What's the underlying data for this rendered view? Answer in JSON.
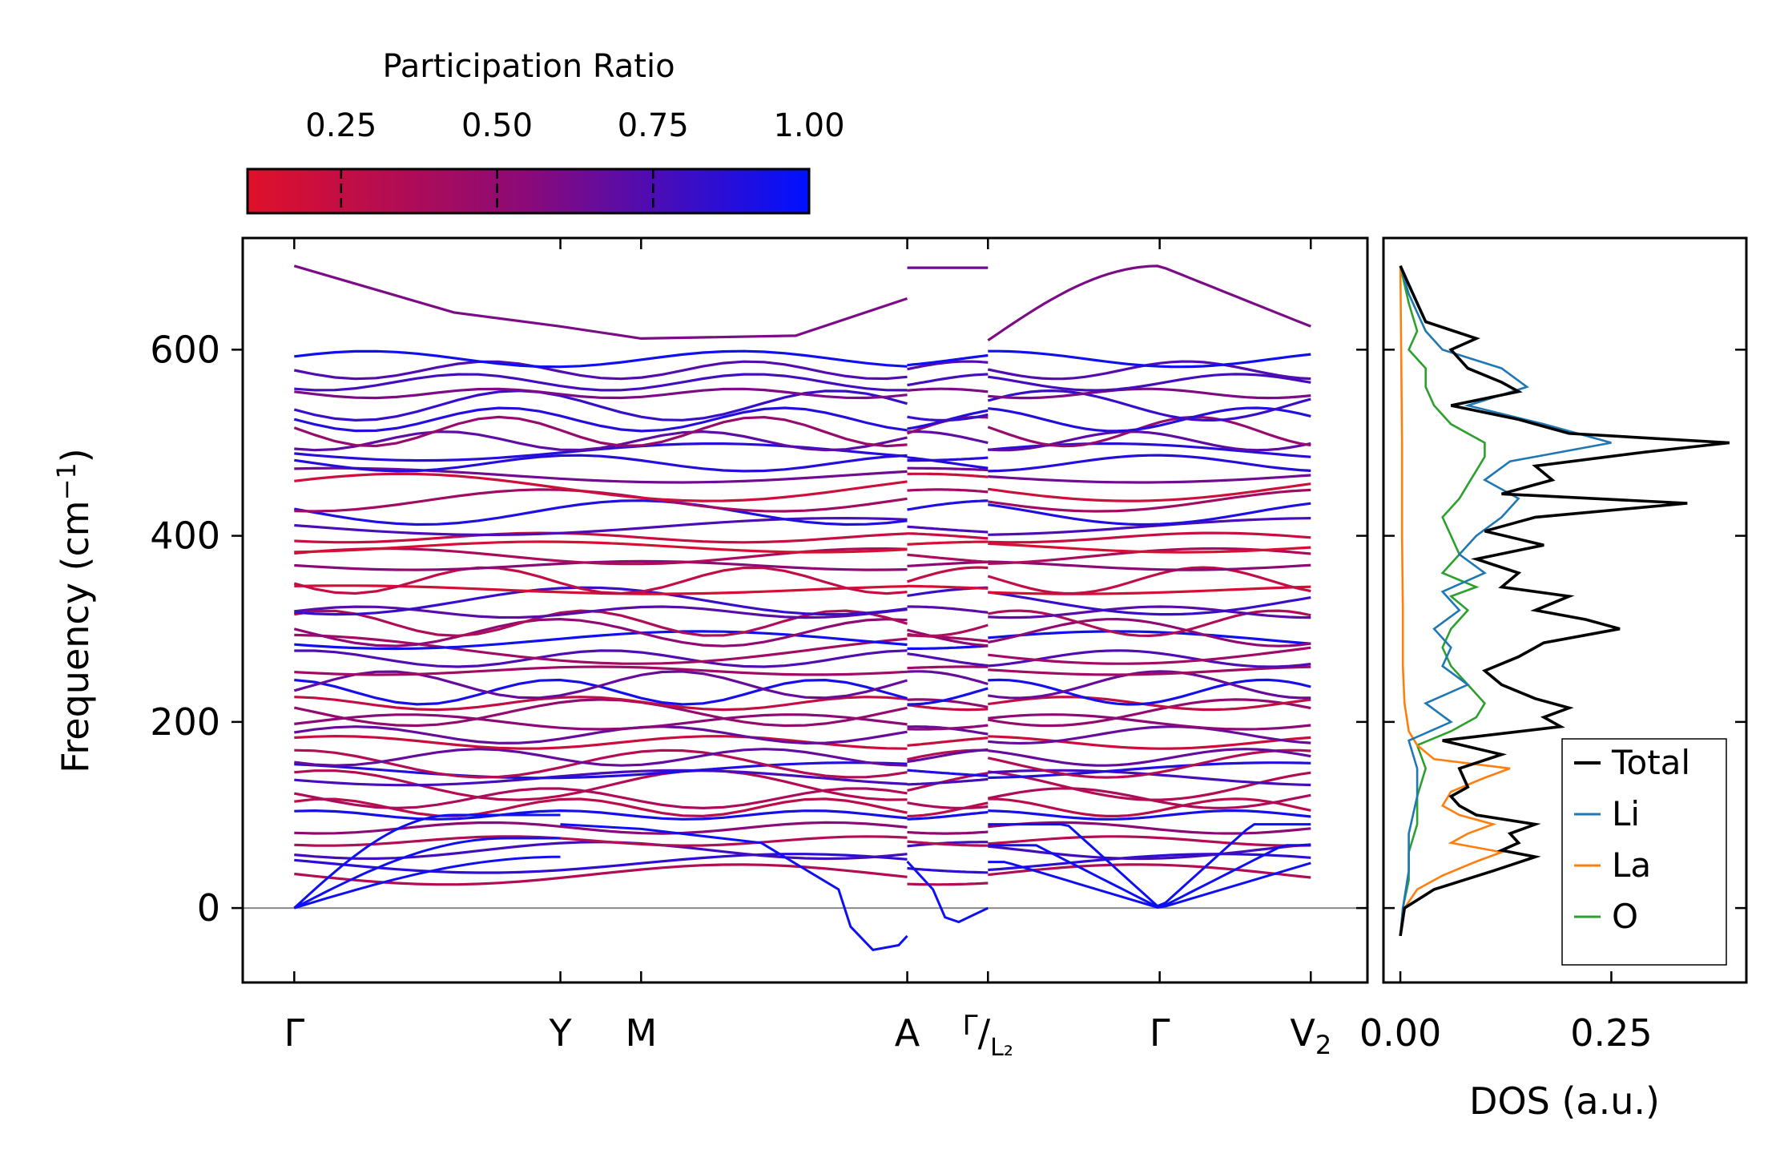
{
  "chart_data": [
    {
      "type": "line",
      "name": "phonon band structure",
      "ylabel": "Frequency (cm",
      "ylabel_exp": "−1",
      "ylabel_close": ")",
      "ylim": [
        -80,
        720
      ],
      "yticks": [
        0,
        200,
        400,
        600
      ],
      "ytick_labels": [
        "0",
        "200",
        "400",
        "600"
      ],
      "kpath": [
        {
          "label": "Γ",
          "x": 0.0
        },
        {
          "label": "Y",
          "x": 1.55
        },
        {
          "label": "M",
          "x": 2.02
        },
        {
          "label": "A",
          "x": 3.57
        },
        {
          "label": "Γ/L₂",
          "x": 4.04,
          "sup": "Γ",
          "sub": "L₂",
          "slash": "/"
        },
        {
          "label": "Γ",
          "x": 5.04
        },
        {
          "label": "V₂",
          "x": 5.92,
          "main": "V",
          "sub": "2"
        }
      ],
      "xlim": [
        -0.3,
        6.25
      ],
      "segment_breaks": [
        3.57,
        4.04
      ],
      "band_levels_cm1": [
        36,
        48,
        62,
        72,
        86,
        100,
        108,
        118,
        132,
        140,
        148,
        155,
        162,
        178,
        186,
        200,
        210,
        220,
        232,
        240,
        255,
        268,
        278,
        288,
        296,
        306,
        318,
        330,
        342,
        352,
        368,
        378,
        388,
        398,
        410,
        425,
        438,
        452,
        465,
        478,
        490,
        502,
        512,
        525,
        540,
        553,
        565,
        578,
        590
      ],
      "band_top_cm1": 690,
      "acoustic_max_cm1": 100,
      "imaginary_min_cm1": -45,
      "zero_line": true,
      "colormap_note": "color encodes participation ratio"
    },
    {
      "type": "colorbar",
      "title": "Participation Ratio",
      "range": [
        0.1,
        1.0
      ],
      "ticks": [
        0.25,
        0.5,
        0.75,
        1.0
      ],
      "tick_labels": [
        "0.25",
        "0.50",
        "0.75",
        "1.00"
      ],
      "colors": [
        "#e0102a",
        "#8a0a78",
        "#0010ff"
      ]
    },
    {
      "type": "line",
      "name": "density of states",
      "xlabel": "DOS (a.u.)",
      "xlim": [
        -0.02,
        0.41
      ],
      "xticks": [
        0.0,
        0.25
      ],
      "xtick_labels": [
        "0.00",
        "0.25"
      ],
      "ylim": [
        -80,
        720
      ],
      "series": [
        {
          "name": "Total",
          "color": "#000000",
          "freq": [
            -30,
            0,
            20,
            40,
            55,
            62,
            70,
            80,
            90,
            100,
            110,
            120,
            130,
            150,
            165,
            180,
            195,
            205,
            215,
            225,
            240,
            255,
            270,
            285,
            300,
            310,
            320,
            335,
            345,
            360,
            375,
            390,
            405,
            420,
            435,
            445,
            460,
            475,
            490,
            500,
            510,
            525,
            540,
            555,
            565,
            580,
            600,
            612,
            630,
            650,
            670,
            690
          ],
          "dos": [
            0.0,
            0.005,
            0.04,
            0.11,
            0.16,
            0.12,
            0.14,
            0.13,
            0.16,
            0.09,
            0.07,
            0.06,
            0.08,
            0.07,
            0.12,
            0.05,
            0.19,
            0.17,
            0.2,
            0.16,
            0.12,
            0.1,
            0.14,
            0.17,
            0.26,
            0.22,
            0.16,
            0.2,
            0.12,
            0.14,
            0.09,
            0.17,
            0.1,
            0.16,
            0.34,
            0.12,
            0.18,
            0.16,
            0.29,
            0.39,
            0.2,
            0.14,
            0.06,
            0.14,
            0.12,
            0.08,
            0.06,
            0.09,
            0.03,
            0.02,
            0.01,
            0.0
          ]
        },
        {
          "name": "Li",
          "color": "#1f77b4",
          "freq": [
            -30,
            0,
            40,
            80,
            120,
            150,
            180,
            200,
            220,
            240,
            260,
            280,
            300,
            320,
            340,
            360,
            380,
            400,
            420,
            440,
            460,
            480,
            500,
            520,
            540,
            560,
            580,
            600,
            620,
            640,
            660,
            690
          ],
          "dos": [
            0.0,
            0.003,
            0.01,
            0.01,
            0.02,
            0.02,
            0.01,
            0.06,
            0.03,
            0.08,
            0.05,
            0.06,
            0.04,
            0.07,
            0.05,
            0.1,
            0.07,
            0.09,
            0.12,
            0.14,
            0.1,
            0.13,
            0.25,
            0.17,
            0.08,
            0.15,
            0.12,
            0.05,
            0.03,
            0.02,
            0.01,
            0.0
          ]
        },
        {
          "name": "La",
          "color": "#ff7f0e",
          "freq": [
            -30,
            0,
            20,
            35,
            50,
            60,
            70,
            80,
            90,
            100,
            110,
            125,
            140,
            150,
            160,
            175,
            190,
            220,
            260,
            320,
            400,
            500,
            600,
            690
          ],
          "dos": [
            0.0,
            0.005,
            0.02,
            0.05,
            0.09,
            0.12,
            0.06,
            0.08,
            0.11,
            0.07,
            0.05,
            0.06,
            0.1,
            0.13,
            0.04,
            0.02,
            0.01,
            0.005,
            0.003,
            0.003,
            0.002,
            0.002,
            0.001,
            0.0
          ]
        },
        {
          "name": "O",
          "color": "#2ca02c",
          "freq": [
            -30,
            0,
            30,
            60,
            90,
            120,
            150,
            175,
            190,
            205,
            220,
            240,
            260,
            280,
            300,
            320,
            335,
            345,
            360,
            380,
            400,
            420,
            440,
            455,
            470,
            485,
            500,
            520,
            540,
            560,
            580,
            600,
            620,
            650,
            690
          ],
          "dos": [
            0.0,
            0.003,
            0.01,
            0.01,
            0.02,
            0.02,
            0.03,
            0.02,
            0.06,
            0.09,
            0.1,
            0.08,
            0.06,
            0.05,
            0.06,
            0.08,
            0.06,
            0.09,
            0.05,
            0.07,
            0.06,
            0.05,
            0.07,
            0.08,
            0.09,
            0.1,
            0.1,
            0.06,
            0.04,
            0.03,
            0.03,
            0.01,
            0.02,
            0.01,
            0.0
          ]
        }
      ],
      "legend": {
        "position": "lower-right",
        "entries": [
          "Total",
          "Li",
          "La",
          "O"
        ]
      }
    }
  ]
}
